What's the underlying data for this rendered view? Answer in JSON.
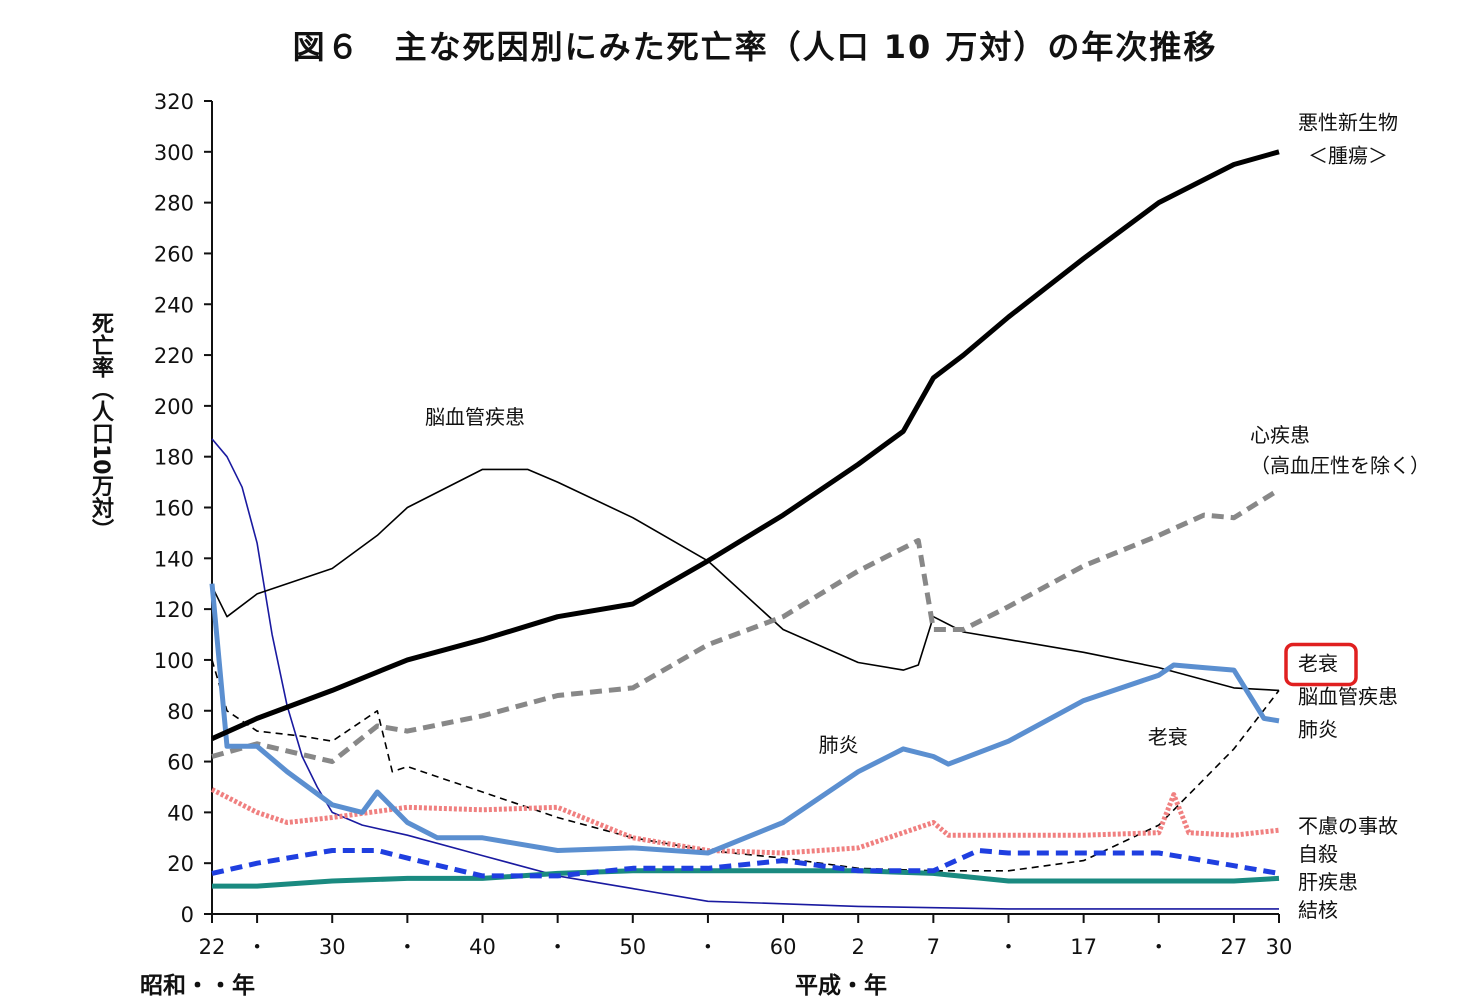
{
  "chart_data": {
    "type": "line",
    "title": "図６　主な死因別にみた死亡率（人口 10 万対）の年次推移",
    "ylabel": "死亡率（人口10万対）",
    "ylim": [
      0,
      320
    ],
    "yticks": [
      0,
      20,
      40,
      60,
      80,
      100,
      120,
      140,
      160,
      180,
      200,
      220,
      240,
      260,
      280,
      300,
      320
    ],
    "xlim": [
      1947,
      2018
    ],
    "xticks": [
      {
        "x": 1947,
        "label": "22"
      },
      {
        "x": 1950,
        "label": "・"
      },
      {
        "x": 1955,
        "label": "30"
      },
      {
        "x": 1960,
        "label": "・"
      },
      {
        "x": 1965,
        "label": "40"
      },
      {
        "x": 1970,
        "label": "・"
      },
      {
        "x": 1975,
        "label": "50"
      },
      {
        "x": 1980,
        "label": "・"
      },
      {
        "x": 1985,
        "label": "60"
      },
      {
        "x": 1990,
        "label": "2"
      },
      {
        "x": 1995,
        "label": "7"
      },
      {
        "x": 2000,
        "label": "・"
      },
      {
        "x": 2005,
        "label": "17"
      },
      {
        "x": 2010,
        "label": "・"
      },
      {
        "x": 2015,
        "label": "27"
      },
      {
        "x": 2018,
        "label": "30"
      }
    ],
    "era_labels": {
      "showa": "昭和・・年",
      "heisei": "平成・年"
    },
    "grid": false,
    "series": [
      {
        "name": "悪性新生物＜腫瘍＞",
        "color": "#000000",
        "style": "thick",
        "x": [
          1947,
          1950,
          1955,
          1960,
          1965,
          1970,
          1975,
          1980,
          1985,
          1990,
          1993,
          1995,
          1997,
          2000,
          2005,
          2010,
          2015,
          2018
        ],
        "y": [
          69,
          77,
          88,
          100,
          108,
          117,
          122,
          139,
          157,
          177,
          190,
          211,
          220,
          235,
          258,
          280,
          295,
          300
        ]
      },
      {
        "name": "心疾患（高血圧性を除く）",
        "color": "#888888",
        "style": "dashed",
        "x": [
          1947,
          1950,
          1955,
          1958,
          1960,
          1965,
          1970,
          1975,
          1980,
          1985,
          1990,
          1994,
          1995,
          1997,
          2000,
          2005,
          2010,
          2013,
          2015,
          2018
        ],
        "y": [
          62,
          67,
          60,
          74,
          72,
          78,
          86,
          89,
          106,
          117,
          135,
          147,
          112,
          112,
          121,
          137,
          149,
          157,
          156,
          167
        ]
      },
      {
        "name": "脳血管疾患",
        "color": "#000000",
        "style": "thin",
        "x": [
          1947,
          1948,
          1950,
          1955,
          1958,
          1960,
          1965,
          1968,
          1970,
          1975,
          1980,
          1985,
          1990,
          1993,
          1994,
          1995,
          1997,
          2000,
          2005,
          2010,
          2015,
          2018
        ],
        "y": [
          129,
          117,
          126,
          136,
          149,
          160,
          175,
          175,
          170,
          156,
          139,
          112,
          99,
          96,
          98,
          117,
          111,
          108,
          103,
          97,
          89,
          88
        ]
      },
      {
        "name": "肺炎",
        "color": "#5b8fd0",
        "style": "thick",
        "x": [
          1947,
          1948,
          1950,
          1952,
          1955,
          1957,
          1958,
          1960,
          1962,
          1965,
          1970,
          1975,
          1980,
          1985,
          1990,
          1993,
          1995,
          1996,
          2000,
          2005,
          2010,
          2011,
          2013,
          2015,
          2017,
          2018
        ],
        "y": [
          130,
          66,
          66,
          56,
          43,
          40,
          48,
          36,
          30,
          30,
          25,
          26,
          24,
          36,
          56,
          65,
          62,
          59,
          68,
          84,
          94,
          98,
          97,
          96,
          77,
          76
        ]
      },
      {
        "name": "老衰",
        "color": "#000000",
        "style": "thin-dashed",
        "x": [
          1947,
          1948,
          1950,
          1953,
          1955,
          1958,
          1959,
          1960,
          1965,
          1970,
          1975,
          1980,
          1985,
          1990,
          1995,
          2000,
          2005,
          2010,
          2015,
          2018
        ],
        "y": [
          100,
          80,
          72,
          70,
          68,
          80,
          56,
          58,
          48,
          38,
          30,
          25,
          22,
          18,
          17,
          17,
          21,
          35,
          65,
          88
        ]
      },
      {
        "name": "不慮の事故",
        "color": "#f08080",
        "style": "dotted",
        "x": [
          1947,
          1950,
          1952,
          1955,
          1960,
          1965,
          1970,
          1975,
          1980,
          1985,
          1990,
          1995,
          1996,
          2000,
          2005,
          2010,
          2011,
          2012,
          2015,
          2018
        ],
        "y": [
          49,
          40,
          36,
          38,
          42,
          41,
          42,
          30,
          25,
          24,
          26,
          36,
          31,
          31,
          31,
          32,
          47,
          32,
          31,
          33
        ]
      },
      {
        "name": "自殺",
        "color": "#1f3fe0",
        "style": "dashed",
        "x": [
          1947,
          1950,
          1955,
          1958,
          1960,
          1965,
          1970,
          1975,
          1980,
          1985,
          1990,
          1995,
          1998,
          2000,
          2005,
          2010,
          2015,
          2018
        ],
        "y": [
          16,
          20,
          25,
          25,
          22,
          15,
          15,
          18,
          18,
          21,
          17,
          17,
          25,
          24,
          24,
          24,
          19,
          16
        ]
      },
      {
        "name": "肝疾患",
        "color": "#1a8a80",
        "style": "thick",
        "x": [
          1947,
          1950,
          1955,
          1960,
          1965,
          1970,
          1975,
          1980,
          1985,
          1990,
          1995,
          2000,
          2005,
          2010,
          2015,
          2018
        ],
        "y": [
          11,
          11,
          13,
          14,
          14,
          16,
          17,
          17,
          17,
          17,
          16,
          13,
          13,
          13,
          13,
          14
        ]
      },
      {
        "name": "結核",
        "color": "#1a1aa0",
        "style": "thin",
        "x": [
          1947,
          1948,
          1949,
          1950,
          1951,
          1952,
          1953,
          1954,
          1955,
          1957,
          1960,
          1965,
          1970,
          1975,
          1980,
          1985,
          1990,
          2000,
          2010,
          2018
        ],
        "y": [
          187,
          180,
          168,
          146,
          110,
          82,
          62,
          50,
          40,
          35,
          31,
          23,
          15,
          10,
          5,
          4,
          3,
          2,
          2,
          2
        ]
      }
    ],
    "annotations": [
      {
        "text": "脳血管疾患",
        "x": 1964.5,
        "y": 196
      },
      {
        "text": "肺炎",
        "x": 1988.7,
        "y": 67
      },
      {
        "text": "老衰",
        "x": 2010.6,
        "y": 70
      }
    ],
    "right_labels": [
      {
        "text": "悪性新生物",
        "y": 312
      },
      {
        "text": "＜腫瘍＞",
        "y": 299
      },
      {
        "text": "心疾患",
        "y": 189
      },
      {
        "text": "（高血圧性を除く）",
        "y": 177
      },
      {
        "text": "老衰",
        "y": 99,
        "highlight": true
      },
      {
        "text": "脳血管疾患",
        "y": 86
      },
      {
        "text": "肺炎",
        "y": 73
      },
      {
        "text": "不慮の事故",
        "y": 35
      },
      {
        "text": "自殺",
        "y": 24
      },
      {
        "text": "肝疾患",
        "y": 13
      },
      {
        "text": "結核",
        "y": 2
      }
    ],
    "highlight_color": "#e02020"
  }
}
